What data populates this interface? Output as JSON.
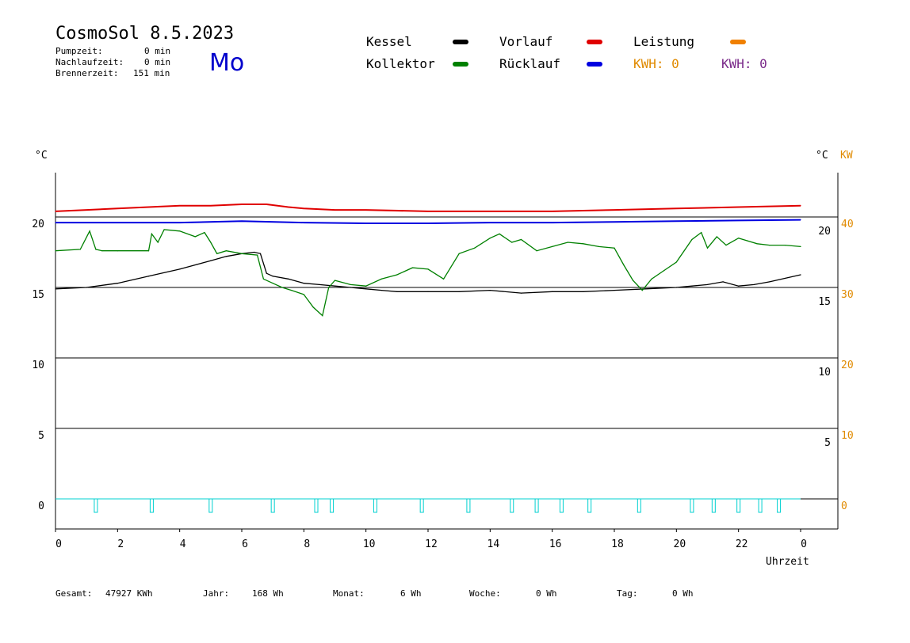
{
  "header": {
    "title": "CosmoSol 8.5.2023",
    "weekday": "Mo",
    "stats": [
      {
        "label": "Pumpzeit:",
        "value": "0 min"
      },
      {
        "label": "Nachlaufzeit:",
        "value": "0 min"
      },
      {
        "label": "Brennerzeit:",
        "value": "151 min"
      }
    ]
  },
  "legend": {
    "kessel": {
      "label": "Kessel",
      "color": "#000000"
    },
    "kollektor": {
      "label": "Kollektor",
      "color": "#008000"
    },
    "vorlauf": {
      "label": "Vorlauf",
      "color": "#e00000"
    },
    "ruecklauf": {
      "label": "Rücklauf",
      "color": "#0000e0"
    },
    "leistung": {
      "label": "Leistung",
      "color": "#f08000"
    },
    "kwh_a": "KWH: 0",
    "kwh_b": "KWH: 0",
    "kwh_a_color": "#e08a00",
    "kwh_b_color": "#7a2a8a"
  },
  "axes": {
    "left_unit": "°C",
    "right_unit": "°C",
    "right_unit2": "KW",
    "xlabel": "Uhrzeit"
  },
  "footer": [
    {
      "label": "Gesamt:",
      "value": "47927 KWh"
    },
    {
      "label": "Jahr:",
      "value": "168 Wh"
    },
    {
      "label": "Monat:",
      "value": "6 Wh"
    },
    {
      "label": "Woche:",
      "value": "0 Wh"
    },
    {
      "label": "Tag:",
      "value": "0 Wh"
    }
  ],
  "chart_data": {
    "type": "line",
    "xlabel": "Uhrzeit",
    "xlim": [
      0,
      24
    ],
    "ylim": [
      -2,
      22
    ],
    "x_ticks": [
      "0",
      "2",
      "4",
      "6",
      "8",
      "10",
      "12",
      "14",
      "16",
      "18",
      "20",
      "22",
      "0"
    ],
    "y_ticks_left": [
      "0",
      "5",
      "10",
      "15",
      "20"
    ],
    "y_ticks_right": [
      "5",
      "10",
      "15",
      "20"
    ],
    "y_ticks_kw": [
      "0",
      "10",
      "20",
      "30",
      "40"
    ],
    "grid": "horizontal",
    "series": [
      {
        "name": "Kessel",
        "color": "#000000",
        "x": [
          0,
          1,
          2,
          3,
          4,
          5,
          5.5,
          6,
          6.4,
          6.6,
          6.8,
          7,
          7.5,
          8,
          8.5,
          9,
          9.5,
          10,
          10.5,
          11,
          12,
          13,
          14,
          15,
          16,
          17,
          18,
          19,
          20,
          20.5,
          21,
          21.5,
          22,
          22.5,
          23,
          24
        ],
        "y": [
          14.9,
          15.0,
          15.3,
          15.8,
          16.3,
          16.9,
          17.2,
          17.4,
          17.5,
          17.4,
          16.0,
          15.8,
          15.6,
          15.3,
          15.2,
          15.1,
          15.0,
          14.9,
          14.8,
          14.7,
          14.7,
          14.7,
          14.8,
          14.6,
          14.7,
          14.7,
          14.8,
          14.9,
          15.0,
          15.1,
          15.2,
          15.4,
          15.1,
          15.2,
          15.4,
          15.9
        ]
      },
      {
        "name": "Kollektor",
        "color": "#008000",
        "x": [
          0,
          0.8,
          1.1,
          1.3,
          1.5,
          2,
          3,
          3.1,
          3.3,
          3.5,
          4,
          4.5,
          4.8,
          5,
          5.2,
          5.5,
          6,
          6.5,
          6.7,
          7,
          7.3,
          7.6,
          8,
          8.3,
          8.6,
          8.8,
          9,
          9.5,
          10,
          10.5,
          11,
          11.5,
          12,
          12.5,
          13,
          13.5,
          14,
          14.3,
          14.7,
          15,
          15.5,
          16,
          16.5,
          17,
          17.5,
          18,
          18.3,
          18.6,
          18.9,
          19.2,
          19.6,
          20,
          20.5,
          20.8,
          21,
          21.3,
          21.6,
          22,
          22.3,
          22.6,
          23,
          23.5,
          24
        ],
        "y": [
          17.6,
          17.7,
          19.0,
          17.7,
          17.6,
          17.6,
          17.6,
          18.8,
          18.2,
          19.1,
          19.0,
          18.6,
          18.9,
          18.2,
          17.4,
          17.6,
          17.4,
          17.3,
          15.6,
          15.3,
          15.0,
          14.8,
          14.5,
          13.6,
          13.0,
          15.0,
          15.5,
          15.2,
          15.1,
          15.6,
          15.9,
          16.4,
          16.3,
          15.6,
          17.4,
          17.8,
          18.5,
          18.8,
          18.2,
          18.4,
          17.6,
          17.9,
          18.2,
          18.1,
          17.9,
          17.8,
          16.6,
          15.5,
          14.8,
          15.6,
          16.2,
          16.8,
          18.4,
          18.9,
          17.8,
          18.6,
          18.0,
          18.5,
          18.3,
          18.1,
          18.0,
          18.0,
          17.9
        ]
      },
      {
        "name": "Vorlauf",
        "color": "#e00000",
        "x": [
          0,
          1,
          2,
          3,
          4,
          5,
          6,
          6.8,
          7.5,
          8,
          9,
          10,
          12,
          14,
          16,
          18,
          20,
          22,
          24
        ],
        "y": [
          20.4,
          20.5,
          20.6,
          20.7,
          20.8,
          20.8,
          20.9,
          20.9,
          20.7,
          20.6,
          20.5,
          20.5,
          20.4,
          20.4,
          20.4,
          20.5,
          20.6,
          20.7,
          20.8
        ]
      },
      {
        "name": "Rücklauf",
        "color": "#0000e0",
        "x": [
          0,
          2,
          4,
          6,
          8,
          10,
          12,
          14,
          16,
          18,
          20,
          22,
          24
        ],
        "y": [
          19.6,
          19.6,
          19.6,
          19.7,
          19.6,
          19.55,
          19.55,
          19.6,
          19.6,
          19.65,
          19.7,
          19.75,
          19.8
        ]
      },
      {
        "name": "Leistung",
        "color": "#00d0d0",
        "pulses": [
          1.3,
          3.1,
          5.0,
          7.0,
          8.4,
          8.9,
          10.3,
          11.8,
          13.3,
          14.7,
          15.5,
          16.3,
          17.2,
          18.8,
          20.5,
          21.2,
          22.0,
          22.7,
          23.3
        ],
        "y": [
          0
        ]
      }
    ]
  }
}
